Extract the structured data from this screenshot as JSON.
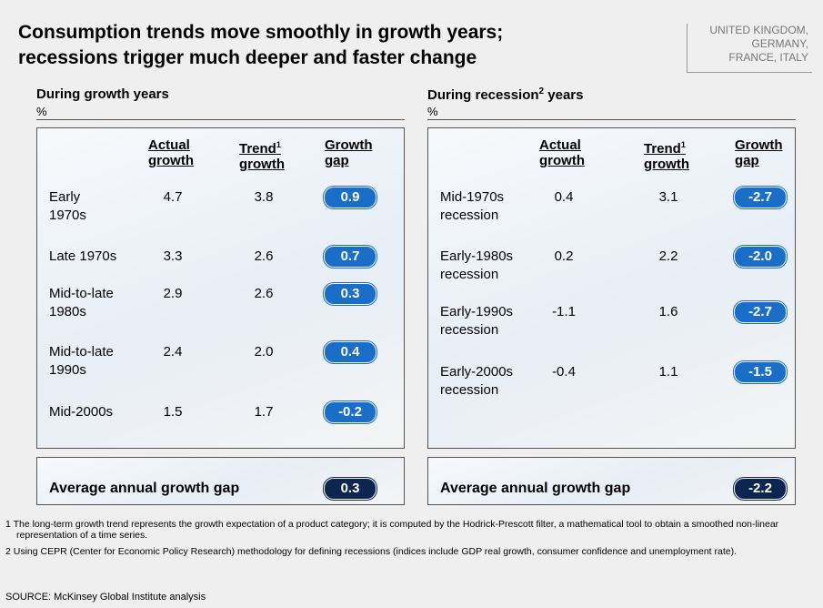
{
  "header": {
    "title_lines": [
      "Consumption trends move smoothly in growth years;",
      "recessions trigger much deeper and faster change"
    ],
    "region_lines": [
      "UNITED KINGDOM,",
      "GERMANY,",
      "FRANCE, ITALY"
    ]
  },
  "panels": [
    {
      "heading": "During growth years",
      "unit": "%",
      "columns": [
        {
          "lines": [
            "Actual",
            "growth"
          ]
        },
        {
          "lines": [
            "Trend",
            "growth"
          ],
          "sup": "1"
        },
        {
          "lines": [
            "Growth",
            "gap"
          ]
        }
      ],
      "rows": [
        {
          "label": [
            "Early",
            "1970s"
          ],
          "actual": "4.7",
          "trend": "3.8",
          "gap": "0.9"
        },
        {
          "label": [
            "Late 1970s"
          ],
          "actual": "3.3",
          "trend": "2.6",
          "gap": "0.7"
        },
        {
          "label": [
            "Mid-to-late",
            "1980s"
          ],
          "actual": "2.9",
          "trend": "2.6",
          "gap": "0.3"
        },
        {
          "label": [
            "Mid-to-late",
            "1990s"
          ],
          "actual": "2.4",
          "trend": "2.0",
          "gap": "0.4"
        },
        {
          "label": [
            "Mid-2000s"
          ],
          "actual": "1.5",
          "trend": "1.7",
          "gap": "-0.2"
        }
      ],
      "average": {
        "label": "Average annual growth gap",
        "value": "0.3"
      }
    },
    {
      "heading": "During recession",
      "heading_sup": "2",
      "heading_after": " years",
      "unit": "%",
      "columns": [
        {
          "lines": [
            "Actual",
            "growth"
          ]
        },
        {
          "lines": [
            "Trend",
            "growth"
          ],
          "sup": "1"
        },
        {
          "lines": [
            "Growth",
            "gap"
          ]
        }
      ],
      "rows": [
        {
          "label": [
            "Mid-1970s",
            "recession"
          ],
          "actual": "0.4",
          "trend": "3.1",
          "gap": "-2.7"
        },
        {
          "label": [
            "Early-1980s",
            "recession"
          ],
          "actual": "0.2",
          "trend": "2.2",
          "gap": "-2.0"
        },
        {
          "label": [
            "Early-1990s",
            "recession"
          ],
          "actual": "-1.1",
          "trend": "1.6",
          "gap": "-2.7"
        },
        {
          "label": [
            "Early-2000s",
            "recession"
          ],
          "actual": "-0.4",
          "trend": "1.1",
          "gap": "-1.5"
        }
      ],
      "average": {
        "label": "Average annual growth gap",
        "value": "-2.2"
      }
    }
  ],
  "footnotes": [
    {
      "number": "1",
      "text": "The long-term growth trend represents the growth expectation of a product category; it is computed by the Hodrick-Prescott filter, a mathematical tool to obtain a smoothed non-linear representation of a time series."
    },
    {
      "number": "2",
      "text": "Using CEPR (Center for Economic Policy Research) methodology for defining recessions (indices include GDP real growth, consumer confidence and unemployment rate)."
    }
  ],
  "source": "SOURCE: McKinsey Global Institute analysis"
}
